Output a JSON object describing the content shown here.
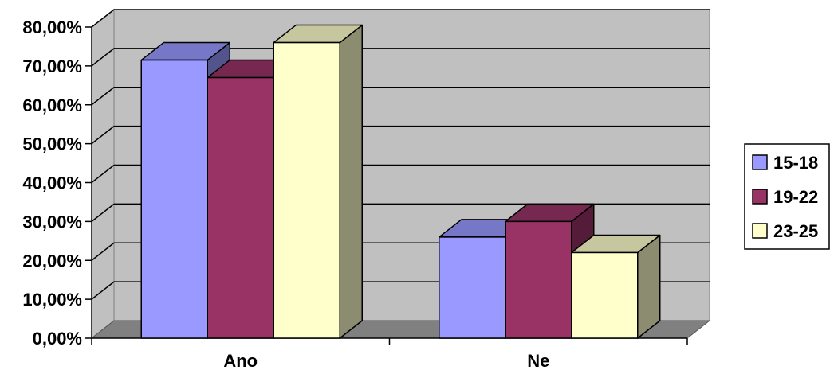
{
  "chart_data": {
    "type": "bar",
    "style": "3d-clustered-column",
    "categories": [
      "Ano",
      "Ne"
    ],
    "series": [
      {
        "name": "15-18",
        "values": [
          71.5,
          26.0
        ],
        "color": "#9999ff"
      },
      {
        "name": "19-22",
        "values": [
          67.0,
          30.0
        ],
        "color": "#993366"
      },
      {
        "name": "23-25",
        "values": [
          76.0,
          22.0
        ],
        "color": "#ffffcc"
      }
    ],
    "ylim": [
      0,
      80
    ],
    "yticks": [
      0,
      10,
      20,
      30,
      40,
      50,
      60,
      70,
      80
    ],
    "ytick_labels": [
      "0,00%",
      "10,00%",
      "20,00%",
      "30,00%",
      "40,00%",
      "50,00%",
      "60,00%",
      "70,00%",
      "80,00%"
    ],
    "grid": true,
    "legend_position": "right",
    "wall_color": "#c0c0c0",
    "floor_color": "#808080",
    "title": "",
    "xlabel": "",
    "ylabel": ""
  }
}
